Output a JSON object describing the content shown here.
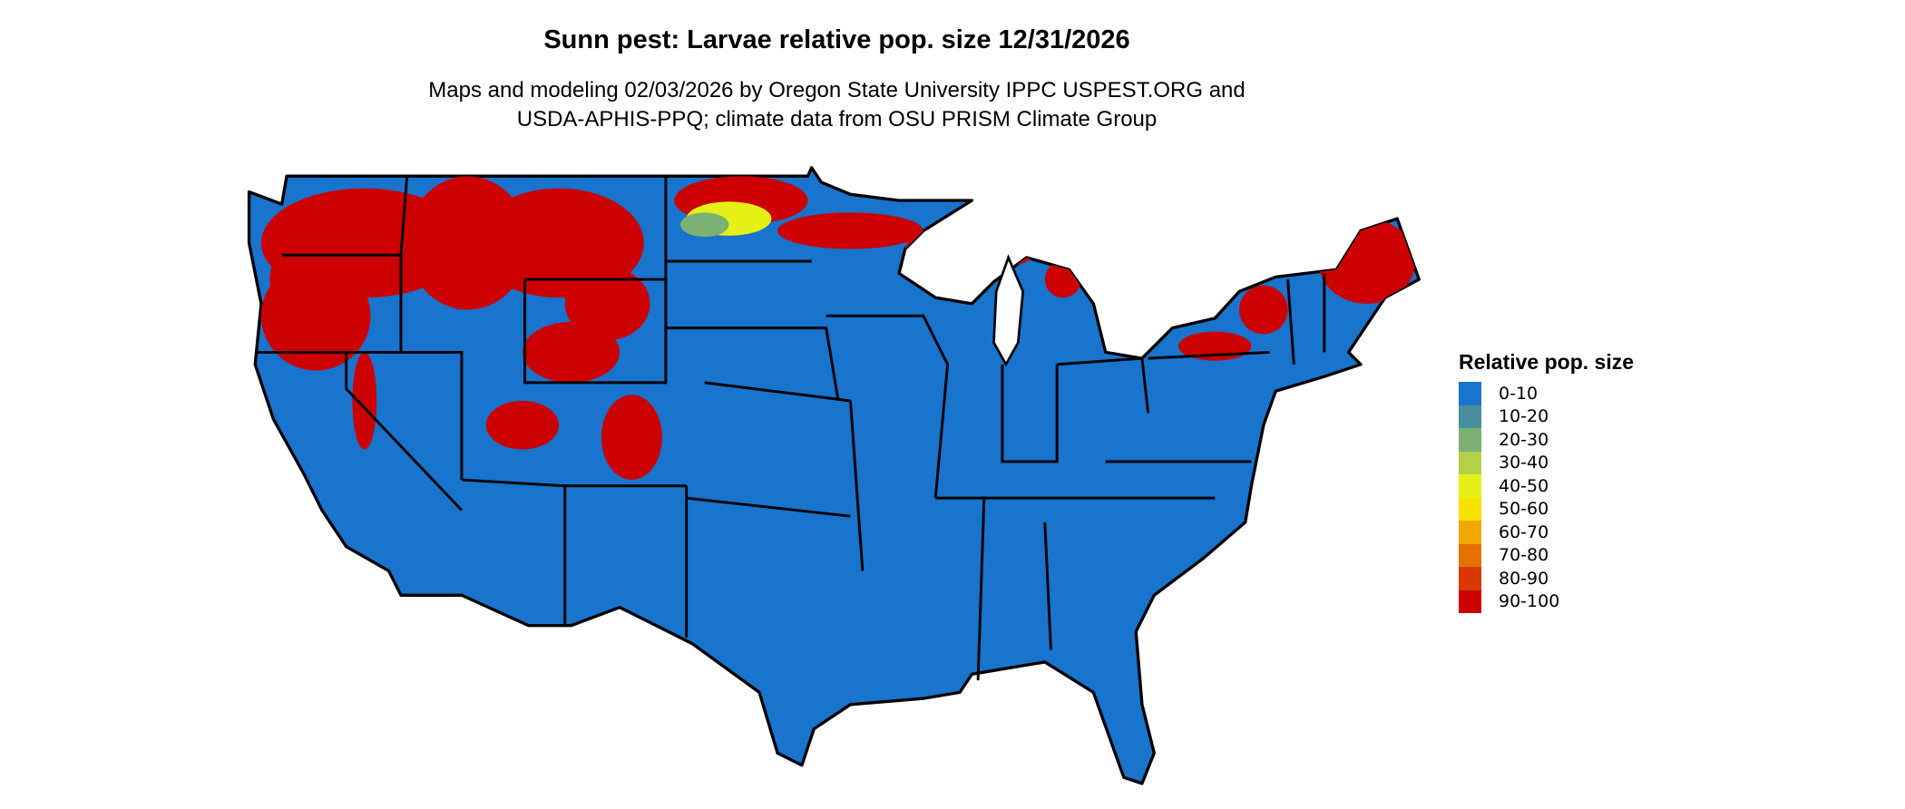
{
  "title": "Sunn pest: Larvae relative pop. size 12/31/2026",
  "subtitle_line1": "Maps and modeling 02/03/2026 by Oregon State University IPPC USPEST.ORG and",
  "subtitle_line2": "USDA-APHIS-PPQ; climate data from OSU PRISM Climate Group",
  "chart_data": {
    "type": "heatmap",
    "region": "Contiguous United States",
    "legend": {
      "title": "Relative pop. size",
      "placement": "right",
      "categories": [
        {
          "label": "0-10",
          "color": "#1874cd"
        },
        {
          "label": "10-20",
          "color": "#48919c"
        },
        {
          "label": "20-30",
          "color": "#7db074"
        },
        {
          "label": "30-40",
          "color": "#b3d046"
        },
        {
          "label": "40-50",
          "color": "#e6f016"
        },
        {
          "label": "50-60",
          "color": "#f8e000"
        },
        {
          "label": "60-70",
          "color": "#f0a800"
        },
        {
          "label": "70-80",
          "color": "#e47000"
        },
        {
          "label": "80-90",
          "color": "#da3800"
        },
        {
          "label": "90-100",
          "color": "#cc0000"
        }
      ]
    }
  }
}
